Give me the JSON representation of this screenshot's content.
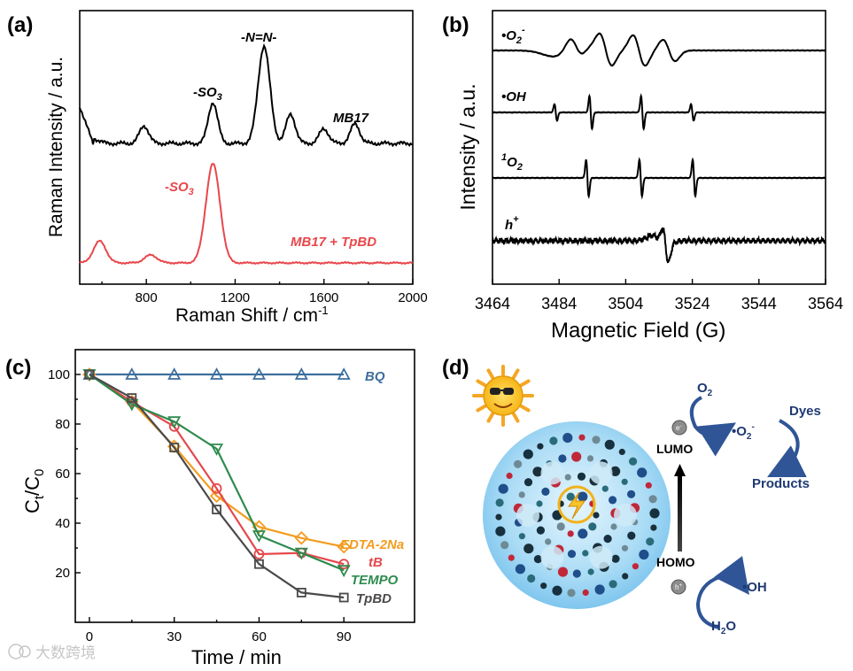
{
  "panels": {
    "a": "(a)",
    "b": "(b)",
    "c": "(c)",
    "d": "(d)"
  },
  "watermark": "大数跨境",
  "chart_data": [
    {
      "id": "a",
      "type": "line",
      "xlabel": "Raman Shift / cm",
      "xlabel_sup": "-1",
      "ylabel": "Raman Intensity / a.u.",
      "xlim": [
        500,
        2000
      ],
      "xticks": [
        800,
        1200,
        1600,
        2000
      ],
      "annotations": [
        {
          "text": "-N=N-",
          "x": 1330,
          "series": "MB17"
        },
        {
          "text": "-SO",
          "sub": "3",
          "x": 1100,
          "series": "MB17"
        },
        {
          "text": "-SO",
          "sub": "3",
          "x": 1100,
          "series": "MB17 + TpBD"
        }
      ],
      "series": [
        {
          "name": "MB17",
          "color": "#000000",
          "peaks": [
            [
              790,
              0.18
            ],
            [
              1100,
              0.42
            ],
            [
              1330,
              1.0
            ],
            [
              1450,
              0.3
            ],
            [
              1600,
              0.15
            ],
            [
              1740,
              0.2
            ]
          ]
        },
        {
          "name": "MB17 + TpBD",
          "color": "#e8474b",
          "peaks": [
            [
              590,
              0.22
            ],
            [
              820,
              0.08
            ],
            [
              1100,
              1.0
            ]
          ]
        }
      ]
    },
    {
      "id": "b",
      "type": "line",
      "xlabel": "Magnetic Field (G)",
      "ylabel": "Intensity / a.u.",
      "xlim": [
        3464,
        3564
      ],
      "xticks": [
        3464,
        3484,
        3504,
        3524,
        3544,
        3564
      ],
      "series": [
        {
          "name": "•O",
          "sub": "2",
          "sup": "-",
          "signal": "DMPO-O2- adduct"
        },
        {
          "name": "•OH",
          "sub": "",
          "sup": "",
          "signal": "DMPO-OH quartet 1:2:2:1"
        },
        {
          "name": "O",
          "pre": "1",
          "sub": "2",
          "sup": "",
          "signal": "TEMP-1O2 triplet 1:1:1"
        },
        {
          "name": "h",
          "sub": "",
          "sup": "+",
          "signal": "broad single line"
        }
      ]
    },
    {
      "id": "c",
      "type": "line",
      "xlabel": "Time / min",
      "ylabel": "C",
      "ylabel_sub1": "t",
      "ylabel_mid": "/C",
      "ylabel_sub2": "0",
      "xlim": [
        -5,
        115
      ],
      "ylim": [
        0,
        110
      ],
      "xticks": [
        0,
        30,
        60,
        90
      ],
      "yticks": [
        20,
        40,
        60,
        80,
        100
      ],
      "x": [
        0,
        15,
        30,
        45,
        60,
        75,
        90
      ],
      "series": [
        {
          "name": "BQ",
          "color": "#3d6f9e",
          "marker": "triangle-up",
          "values": [
            100,
            100,
            100,
            100,
            100,
            100,
            100
          ]
        },
        {
          "name": "EDTA-2Na",
          "color": "#f39c1f",
          "marker": "diamond",
          "values": [
            100,
            89,
            71,
            51,
            38.5,
            34,
            30.5
          ]
        },
        {
          "name": "tB",
          "color": "#e5484d",
          "marker": "circle",
          "values": [
            100,
            89,
            79,
            54,
            27.5,
            28,
            23.5
          ]
        },
        {
          "name": "TEMPO",
          "color": "#2e8b4e",
          "marker": "triangle-down",
          "values": [
            100,
            88,
            81,
            70,
            35,
            28,
            21
          ]
        },
        {
          "name": "TpBD",
          "color": "#4a4a4a",
          "marker": "square",
          "values": [
            100,
            90.5,
            70.5,
            45.5,
            23.5,
            12,
            10
          ]
        }
      ]
    }
  ],
  "scheme": {
    "o2": "O",
    "o2_sub": "2",
    "o2_radical": "•O",
    "o2_radical_sub": "2",
    "o2_radical_sup": "-",
    "dyes": "Dyes",
    "products": "Products",
    "lumo": "LUMO",
    "homo": "HOMO",
    "electron": "e",
    "electron_sup": "-",
    "hole": "h",
    "hole_sup": "+",
    "oh": "•OH",
    "h2o": "H",
    "h2o_sub": "2",
    "h2o_end": "O"
  }
}
